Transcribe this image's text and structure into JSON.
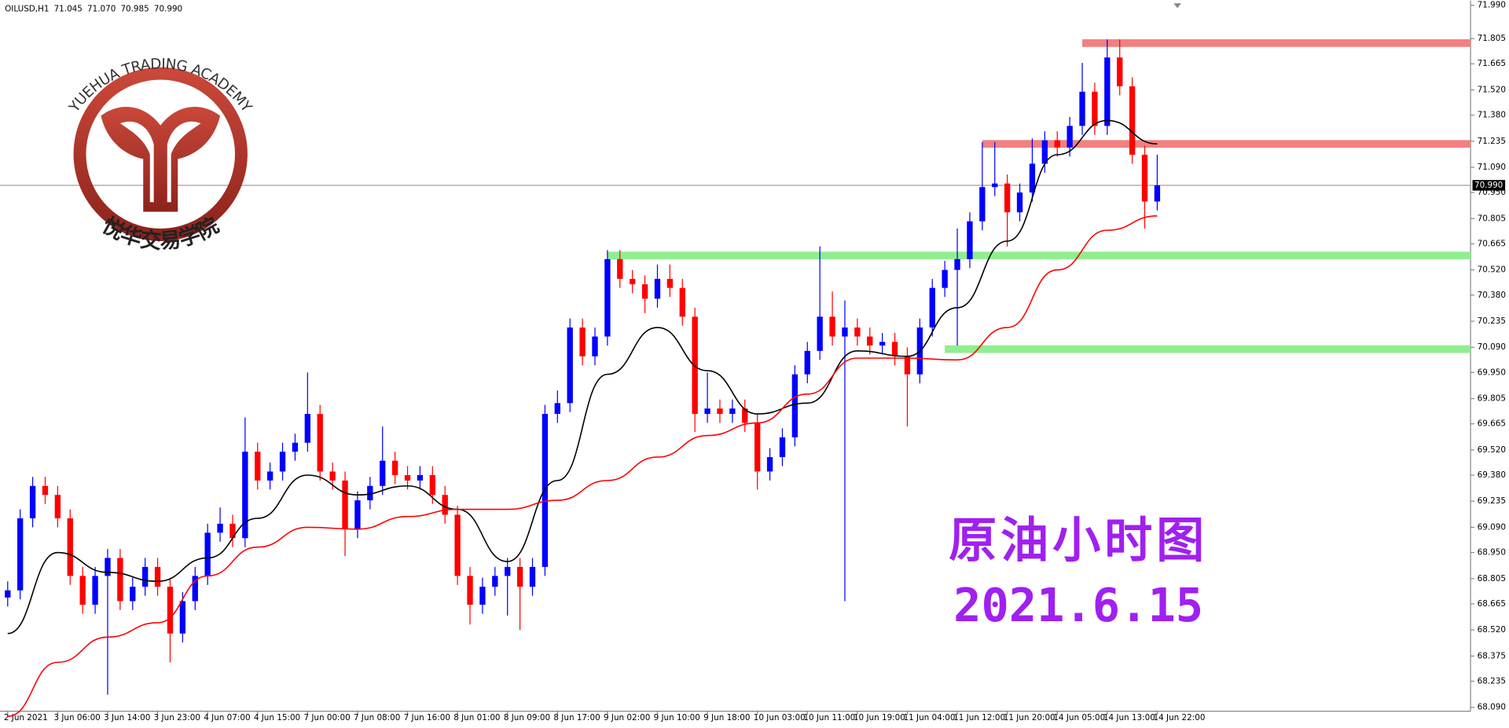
{
  "chart_data": {
    "type": "candlestick",
    "symbol": "OILUSD,H1",
    "header_values": [
      {
        "value": 71.045,
        "label": "71.045"
      },
      {
        "value": 71.07,
        "label": "71.070"
      },
      {
        "value": 70.985,
        "label": "70.985"
      },
      {
        "value": 70.99,
        "label": "70.990"
      }
    ],
    "current_price": {
      "value": 70.99,
      "label": "70.990"
    },
    "annotations": [
      "原油小时图",
      "2021.6.15"
    ],
    "logo_text": "YUEHUA TRADING ACADEMY",
    "logo_subtitle": "悦华交易学院",
    "up_color": "#0000ff",
    "down_color": "#ff0000",
    "categories": [
      "2 Jun 2021",
      null,
      null,
      null,
      "3 Jun 06:00",
      null,
      null,
      null,
      "3 Jun 14:00",
      null,
      null,
      null,
      "3 Jun 23:00",
      null,
      null,
      null,
      "4 Jun 07:00",
      null,
      null,
      null,
      "4 Jun 15:00",
      null,
      null,
      null,
      "7 Jun 00:00",
      null,
      null,
      null,
      "7 Jun 08:00",
      null,
      null,
      null,
      "7 Jun 16:00",
      null,
      null,
      null,
      "8 Jun 01:00",
      null,
      null,
      null,
      "8 Jun 09:00",
      null,
      null,
      null,
      "8 Jun 17:00",
      null,
      null,
      null,
      "9 Jun 02:00",
      null,
      null,
      null,
      "9 Jun 10:00",
      null,
      null,
      null,
      "9 Jun 18:00",
      null,
      null,
      null,
      "10 Jun 03:00",
      null,
      null,
      null,
      "10 Jun 11:00",
      null,
      null,
      null,
      "10 Jun 19:00",
      null,
      null,
      null,
      "11 Jun 04:00",
      null,
      null,
      null,
      "11 Jun 12:00",
      null,
      null,
      null,
      "11 Jun 20:00",
      null,
      null,
      null,
      "14 Jun 05:00",
      null,
      null,
      null,
      "14 Jun 13:00",
      null,
      null,
      null,
      "14 Jun 22:00"
    ],
    "open": [
      68.7,
      68.74,
      69.14,
      69.32,
      69.27,
      69.14,
      68.82,
      68.66,
      68.82,
      68.92,
      68.68,
      68.76,
      68.87,
      68.76,
      68.5,
      68.68,
      68.82,
      69.06,
      69.11,
      69.03,
      69.51,
      69.35,
      69.4,
      69.51,
      69.56,
      69.72,
      69.4,
      69.35,
      69.08,
      69.24,
      69.32,
      69.46,
      69.38,
      69.35,
      69.38,
      69.27,
      69.16,
      68.82,
      68.66,
      68.76,
      68.82,
      68.87,
      68.76,
      68.87,
      69.72,
      69.78,
      70.2,
      70.04,
      70.15,
      70.58,
      70.47,
      70.44,
      70.36,
      70.47,
      70.42,
      70.26,
      69.72,
      69.75,
      69.72,
      69.75,
      69.67,
      69.4,
      69.48,
      69.59,
      69.94,
      70.07,
      70.26,
      70.15,
      70.2,
      70.15,
      70.1,
      70.12,
      70.04,
      69.94,
      70.2,
      70.42,
      70.52,
      70.58,
      70.79,
      70.98,
      71.0,
      70.84,
      70.95,
      71.11,
      71.24,
      71.2,
      71.32,
      71.51,
      71.32,
      71.7,
      71.54,
      71.16,
      70.9
    ],
    "high": [
      68.79,
      69.19,
      69.37,
      69.37,
      69.32,
      69.19,
      68.87,
      68.87,
      68.97,
      68.97,
      68.81,
      68.92,
      68.92,
      68.81,
      68.73,
      68.87,
      69.11,
      69.2,
      69.16,
      69.7,
      69.56,
      69.45,
      69.56,
      69.61,
      69.95,
      69.77,
      69.45,
      69.4,
      69.29,
      69.37,
      69.65,
      69.51,
      69.43,
      69.43,
      69.43,
      69.32,
      69.21,
      68.87,
      68.81,
      68.87,
      68.92,
      68.92,
      68.92,
      69.77,
      69.85,
      70.25,
      70.25,
      70.2,
      70.63,
      70.63,
      70.52,
      70.49,
      70.55,
      70.55,
      70.47,
      70.31,
      69.95,
      69.8,
      69.8,
      69.8,
      69.72,
      69.53,
      69.64,
      69.99,
      70.12,
      70.65,
      70.4,
      70.35,
      70.25,
      70.2,
      70.17,
      70.17,
      70.09,
      70.25,
      70.47,
      70.57,
      70.75,
      70.84,
      71.23,
      71.23,
      71.05,
      71.0,
      71.25,
      71.29,
      71.29,
      71.37,
      71.67,
      71.56,
      71.8,
      71.8,
      71.59,
      71.21,
      71.16
    ],
    "low": [
      68.65,
      68.69,
      69.09,
      69.22,
      69.09,
      68.77,
      68.61,
      68.61,
      68.16,
      68.63,
      68.63,
      68.71,
      68.71,
      68.34,
      68.45,
      68.63,
      68.77,
      69.01,
      68.98,
      68.98,
      69.3,
      69.3,
      69.35,
      69.46,
      69.51,
      69.35,
      69.3,
      68.93,
      69.03,
      69.19,
      69.27,
      69.33,
      69.3,
      69.3,
      69.22,
      69.11,
      68.77,
      68.55,
      68.61,
      68.71,
      68.6,
      68.52,
      68.71,
      68.82,
      69.67,
      69.73,
      69.99,
      69.99,
      70.1,
      70.42,
      70.39,
      70.28,
      70.31,
      70.37,
      70.21,
      69.62,
      69.67,
      69.67,
      69.67,
      69.62,
      69.3,
      69.35,
      69.43,
      69.54,
      69.89,
      70.02,
      70.1,
      68.68,
      70.1,
      70.05,
      70.05,
      69.99,
      69.65,
      69.89,
      70.15,
      70.37,
      70.1,
      70.53,
      70.74,
      70.93,
      70.65,
      70.79,
      70.9,
      71.06,
      71.15,
      71.15,
      71.27,
      71.27,
      71.27,
      71.49,
      71.11,
      70.75,
      70.85
    ],
    "close": [
      68.74,
      69.14,
      69.32,
      69.27,
      69.14,
      68.82,
      68.66,
      68.82,
      68.92,
      68.68,
      68.76,
      68.87,
      68.76,
      68.5,
      68.68,
      68.82,
      69.06,
      69.11,
      69.03,
      69.51,
      69.35,
      69.4,
      69.51,
      69.56,
      69.72,
      69.4,
      69.35,
      69.08,
      69.24,
      69.32,
      69.46,
      69.38,
      69.35,
      69.38,
      69.27,
      69.16,
      68.82,
      68.66,
      68.76,
      68.82,
      68.87,
      68.76,
      68.87,
      69.72,
      69.78,
      70.2,
      70.04,
      70.15,
      70.58,
      70.47,
      70.44,
      70.36,
      70.47,
      70.42,
      70.26,
      69.72,
      69.75,
      69.72,
      69.75,
      69.67,
      69.4,
      69.48,
      69.59,
      69.94,
      70.07,
      70.26,
      70.15,
      70.2,
      70.15,
      70.1,
      70.12,
      70.04,
      69.94,
      70.2,
      70.42,
      70.52,
      70.58,
      70.79,
      70.98,
      71.0,
      70.84,
      70.95,
      71.11,
      71.24,
      71.2,
      71.32,
      71.51,
      71.32,
      71.7,
      71.54,
      71.16,
      70.9,
      70.99
    ],
    "ma_x": [
      0,
      4,
      8,
      12,
      16,
      20,
      24,
      28,
      32,
      36,
      40,
      44,
      48,
      52,
      56,
      60,
      64,
      68,
      72,
      76,
      80,
      84,
      88,
      92
    ],
    "moving_averages": [
      {
        "color": "#000000",
        "values": [
          68.5,
          68.95,
          68.84,
          68.79,
          68.92,
          69.14,
          69.38,
          69.27,
          69.32,
          69.19,
          68.9,
          69.35,
          69.94,
          70.2,
          69.96,
          69.72,
          69.78,
          70.07,
          70.04,
          70.31,
          70.68,
          71.16,
          71.35,
          71.22
        ]
      },
      {
        "color": "#ff0000",
        "values": [
          68.04,
          68.34,
          68.48,
          68.56,
          68.82,
          68.98,
          69.09,
          69.08,
          69.15,
          69.19,
          69.19,
          69.24,
          69.35,
          69.48,
          69.6,
          69.67,
          69.83,
          70.03,
          70.03,
          70.02,
          70.2,
          70.52,
          70.74,
          70.82
        ]
      }
    ],
    "levels": [
      {
        "value": 71.78,
        "from": 86,
        "color": "#f28080"
      },
      {
        "value": 71.22,
        "from": 78,
        "color": "#f28080"
      },
      {
        "value": 70.6,
        "from": 48,
        "color": "#90ee90"
      },
      {
        "value": 70.08,
        "from": 75,
        "color": "#90ee90"
      }
    ],
    "ylim": [
      68.09,
      71.99
    ],
    "yticks": [
      {
        "value": 71.99,
        "label": "71.990"
      },
      {
        "value": 71.805,
        "label": "71.805"
      },
      {
        "value": 71.665,
        "label": "71.665"
      },
      {
        "value": 71.52,
        "label": "71.520"
      },
      {
        "value": 71.38,
        "label": "71.380"
      },
      {
        "value": 71.235,
        "label": "71.235"
      },
      {
        "value": 71.09,
        "label": "71.090"
      },
      {
        "value": 70.95,
        "label": "70.950"
      },
      {
        "value": 70.805,
        "label": "70.805"
      },
      {
        "value": 70.665,
        "label": "70.665"
      },
      {
        "value": 70.52,
        "label": "70.520"
      },
      {
        "value": 70.38,
        "label": "70.380"
      },
      {
        "value": 70.235,
        "label": "70.235"
      },
      {
        "value": 70.09,
        "label": "70.090"
      },
      {
        "value": 69.95,
        "label": "69.950"
      },
      {
        "value": 69.805,
        "label": "69.805"
      },
      {
        "value": 69.665,
        "label": "69.665"
      },
      {
        "value": 69.52,
        "label": "69.520"
      },
      {
        "value": 69.38,
        "label": "69.380"
      },
      {
        "value": 69.235,
        "label": "69.235"
      },
      {
        "value": 69.09,
        "label": "69.090"
      },
      {
        "value": 68.95,
        "label": "68.950"
      },
      {
        "value": 68.805,
        "label": "68.805"
      },
      {
        "value": 68.665,
        "label": "68.665"
      },
      {
        "value": 68.52,
        "label": "68.520"
      },
      {
        "value": 68.375,
        "label": "68.375"
      },
      {
        "value": 68.235,
        "label": "68.235"
      },
      {
        "value": 68.09,
        "label": "68.090"
      }
    ]
  }
}
